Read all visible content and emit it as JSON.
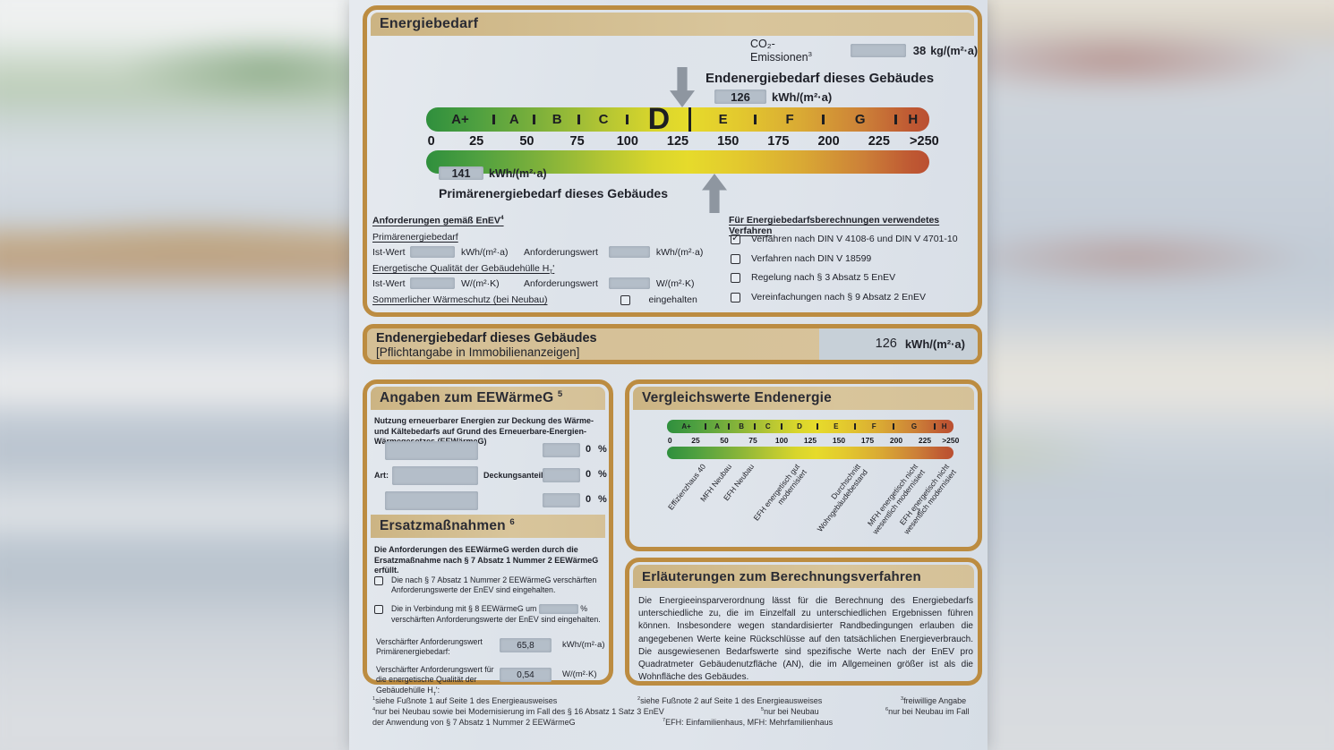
{
  "colors": {
    "box_border": "#bc8c41",
    "header_strip": "#d2bc8f",
    "field_grey": "#b4bec9",
    "scale_green": "#2f8f3d",
    "scale_yellow": "#e6db2b",
    "scale_red": "#ba4f31",
    "arrow_grey": "#8e96a0"
  },
  "scale": {
    "classes": [
      "A+",
      "A",
      "B",
      "C",
      "D",
      "E",
      "F",
      "G",
      "H"
    ],
    "ticks": [
      "0",
      "25",
      "50",
      "75",
      "100",
      "125",
      "150",
      "175",
      "200",
      "225",
      ">250"
    ]
  },
  "chart_data": {
    "type": "other",
    "description": "EnEV energy efficiency scale 0 to >250 kWh/(m²·a) with classes A+ to H",
    "classes": [
      "A+",
      "A",
      "B",
      "C",
      "D",
      "E",
      "F",
      "G",
      "H"
    ],
    "axis_ticks": [
      0,
      25,
      50,
      75,
      100,
      125,
      150,
      175,
      200,
      225,
      250
    ],
    "endenergiebedarf_kwh_m2a": 126,
    "primaerenergiebedarf_kwh_m2a": 141,
    "co2_emissionen_kg_m2a": 38,
    "building_class": "D"
  },
  "box_energiebedarf": {
    "title": "Energiebedarf",
    "co2_label": "CO₂-Emissionen",
    "co2_sup": "3",
    "co2_value": "38",
    "co2_unit": "kg/(m²·a)",
    "end_label": "Endenergiebedarf dieses Gebäudes",
    "end_value": "126",
    "end_unit": "kWh/(m²·a)",
    "prim_value": "141",
    "prim_unit": "kWh/(m²·a)",
    "prim_label": "Primärenergiebedarf dieses Gebäudes",
    "anf": {
      "heading": "Anforderungen gemäß EnEV",
      "sup": "4",
      "primaer_label": "Primärenergiebedarf",
      "ist_wert": "Ist-Wert",
      "anforderungswert": "Anforderungswert",
      "unit_kwh": "kWh/(m²·a)",
      "unit_w": "W/(m²·K)",
      "huelle_label": "Energetische Qualität der Gebäudehülle H",
      "huelle_sub": "T",
      "huelle_suffix": "'",
      "sommer_label": "Sommerlicher Wärmeschutz (bei Neubau)",
      "eingehalten": "eingehalten"
    },
    "verf": {
      "heading": "Für Energiebedarfsberechnungen verwendetes Verfahren",
      "items": [
        {
          "mark": "✓",
          "label": "Verfahren nach DIN V 4108-6 und DIN V 4701-10"
        },
        {
          "mark": "",
          "label": "Verfahren nach DIN V 18599"
        },
        {
          "mark": "",
          "label": "Regelung nach § 3 Absatz 5 EnEV"
        },
        {
          "mark": "",
          "label": "Vereinfachungen nach § 9 Absatz 2 EnEV"
        }
      ]
    }
  },
  "banner": {
    "title": "Endenergiebedarf dieses Gebäudes",
    "subtitle": "[Pflichtangabe in Immobilienanzeigen]",
    "value": "126",
    "unit": "kWh/(m²·a)"
  },
  "eewaermeg": {
    "heading": "Angaben zum EEWärmeG",
    "sup": "5",
    "intro": "Nutzung erneuerbarer Energien zur Deckung des Wärme- und Kältebedarfs auf Grund des Erneuerbare-Energien-Wärmegesetzes (EEWärmeG)",
    "art_label": "Art:",
    "deckungsanteil_label": "Deckungsanteil:",
    "percent_1": "0",
    "percent_2": "0",
    "percent_3": "0",
    "percent_unit": "%"
  },
  "ersatz": {
    "heading": "Ersatzmaßnahmen",
    "sup": "6",
    "intro": "Die Anforderungen des EEWärmeG werden durch die Ersatzmaßnahme nach § 7 Absatz 1 Nummer 2 EEWärmeG erfüllt.",
    "check1": "Die nach § 7 Absatz 1 Nummer 2 EEWärmeG verschärften Anforderungswerte der EnEV sind eingehalten.",
    "check2a": "Die in Verbindung mit § 8 EEWärmeG um",
    "check2_unit": "%",
    "check2b": "verschärften Anforderungswerte der EnEV sind eingehalten.",
    "req1_label": "Verschärfter Anforderungswert Primärenergiebedarf:",
    "req1_value": "65,8",
    "req1_unit": "kWh/(m²·a)",
    "req2_label": "Verschärfter Anforderungswert für die energetische Qualität der Gebäudehülle H",
    "req2_sub": "T",
    "req2_suffix": "':",
    "req2_value": "0,54",
    "req2_unit": "W/(m²·K)"
  },
  "vergleich": {
    "heading": "Vergleichswerte Endenergie",
    "labels": [
      "Effizienzhaus 40",
      "MFH Neubau",
      "EFH Neubau",
      "EFH energetisch gut modernisiert",
      "Durchschnitt Wohngebäudebestand",
      "MFH energetisch nicht wesentlich modernisiert",
      "EFH energetisch nicht wesentlich modernisiert"
    ],
    "footnote_mark": "7"
  },
  "erlaeuterungen": {
    "heading": "Erläuterungen zum Berechnungsverfahren",
    "body": "Die Energieeinsparverordnung lässt für die Berechnung des Energiebedarfs unterschiedliche zu, die im Einzelfall zu unterschiedlichen Ergebnissen führen können. Insbesondere wegen standardisierter Randbedingungen erlauben die angegebenen Werte keine Rückschlüsse auf den tatsächlichen Energieverbrauch. Die ausgewiesenen Bedarfswerte sind spezifische Werte nach der EnEV pro Quadratmeter Gebäudenutzfläche (AN), die im Allgemeinen größer ist als die Wohnfläche des Gebäudes."
  },
  "footnotes": {
    "f1_sup": "1",
    "f1": "siehe Fußnote 1 auf Seite 1 des Energieausweises",
    "f2_sup": "2",
    "f2": "siehe Fußnote 2 auf Seite 1 des Energieausweises",
    "f3_sup": "3",
    "f3": "freiwillige Angabe",
    "f4_sup": "4",
    "f4": "nur bei Neubau sowie bei Modernisierung im Fall des § 16 Absatz 1 Satz 3 EnEV",
    "f5_sup": "5",
    "f5": "nur bei Neubau",
    "f6_sup": "6",
    "f6": "nur bei Neubau im Fall",
    "f6b": "der Anwendung von § 7 Absatz 1 Nummer 2 EEWärmeG",
    "f7_sup": "7",
    "f7": "EFH: Einfamilienhaus, MFH: Mehrfamilienhaus"
  }
}
